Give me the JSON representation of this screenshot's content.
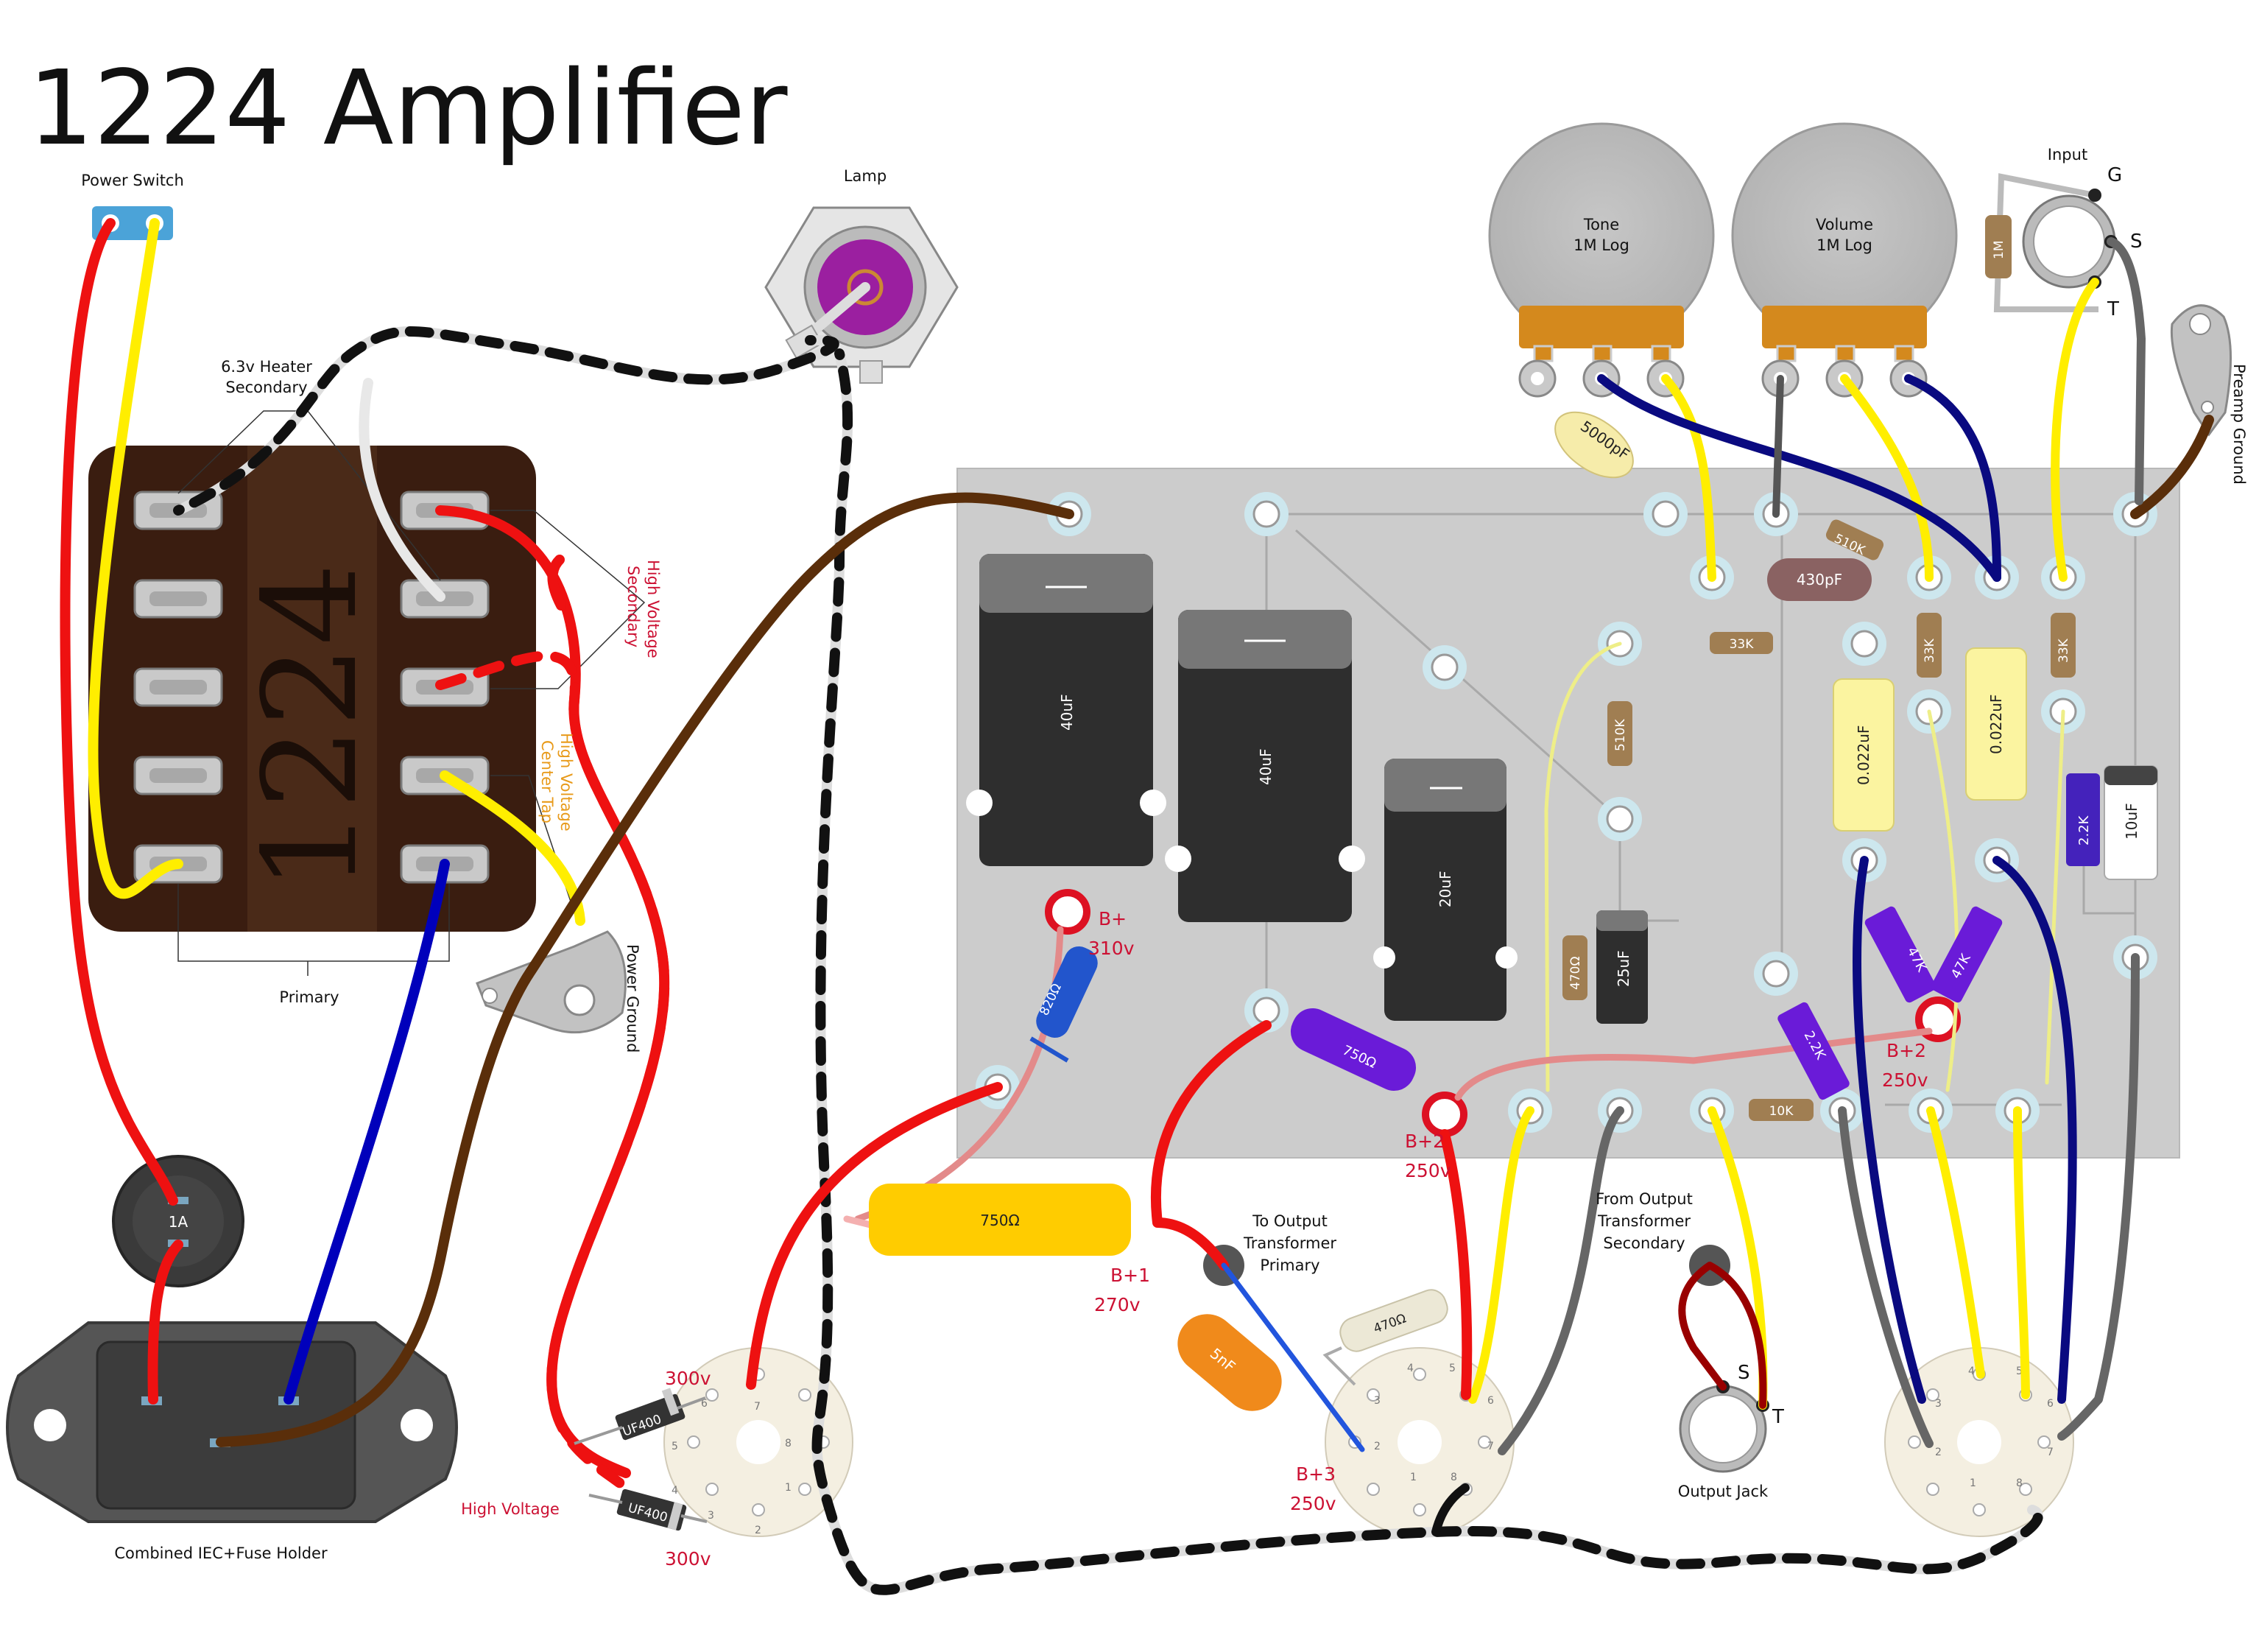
{
  "title": "1224 Amplifier",
  "labels": {
    "power_switch": "Power Switch",
    "lamp": "Lamp",
    "input": "Input",
    "heater_secondary_l1": "6.3v Heater",
    "heater_secondary_l2": "Secondary",
    "primary": "Primary",
    "hv_secondary_l1": "High Voltage",
    "hv_secondary_l2": "Secondary",
    "hv_center_tap_l1": "High Voltage",
    "hv_center_tap_l2": "Center Tap",
    "power_ground": "Power Ground",
    "preamp_ground": "Preamp Ground",
    "iec_fuse": "Combined IEC+Fuse Holder",
    "to_output_transformer_l1": "To Output",
    "to_output_transformer_l2": "Transformer",
    "to_output_transformer_l3": "Primary",
    "from_output_transformer_l1": "From Output",
    "from_output_transformer_l2": "Transformer",
    "from_output_transformer_l3": "Secondary",
    "output_jack": "Output Jack",
    "high_voltage": "High Voltage",
    "jack_g": "G",
    "jack_s": "S",
    "jack_t": "T",
    "out_s": "S",
    "out_t": "T"
  },
  "transformer": {
    "name": "1224"
  },
  "fuse": {
    "rating": "1A"
  },
  "pots": {
    "tone_name": "Tone",
    "tone_value": "1M Log",
    "volume_name": "Volume",
    "volume_value": "1M Log"
  },
  "components": {
    "r_1m": "1M",
    "c_5000pf": "5000pF",
    "r_510k_top": "510K",
    "c_430pf": "430pF",
    "r_33k_mid": "33K",
    "r_33k_a": "33K",
    "r_33k_b": "33K",
    "r_510k_v": "510K",
    "c_022_a": "0.022uF",
    "c_022_b": "0.022uF",
    "r_2_2k_a": "2.2K",
    "c_10uf": "10uF",
    "c_40uf_a": "40uF",
    "c_40uf_b": "40uF",
    "c_20uf": "20uF",
    "r_470_v": "470Ω",
    "c_25uf": "25uF",
    "r_47k_a": "47K",
    "r_47k_b": "47K",
    "r_2_2k_b": "2.2K",
    "r_10k": "10K",
    "r_820": "820Ω",
    "r_750_purple": "750Ω",
    "r_750_big": "750Ω",
    "c_5nf": "5nF",
    "r_470_tube": "470Ω",
    "d_1": "UF400",
    "d_2": "UF400"
  },
  "voltages": {
    "bplus_name": "B+",
    "bplus_v": "310v",
    "b2_name": "B+2",
    "b2_v": "250v",
    "b2b_name": "B+2",
    "b2b_v": "250v",
    "b1_name": "B+1",
    "b1_v": "270v",
    "b3_name": "B+3",
    "b3_v": "250v",
    "d_top": "300v",
    "d_bottom": "300v"
  },
  "tube_pins": [
    "1",
    "2",
    "3",
    "4",
    "5",
    "6",
    "7",
    "8"
  ],
  "colors": {
    "wire_red": "#ee1111",
    "wire_yellow": "#ffee00",
    "wire_blue": "#0000bb",
    "wire_navy": "#0a0a80",
    "wire_brown": "#5a2e0a",
    "wire_black": "#111111",
    "wire_gray": "#666666",
    "board": "#cccccc",
    "transformer_dark": "#3a1d10",
    "transformer_light": "#4a2a18",
    "label_red": "#cc1133",
    "label_orange": "#e89a1a"
  }
}
